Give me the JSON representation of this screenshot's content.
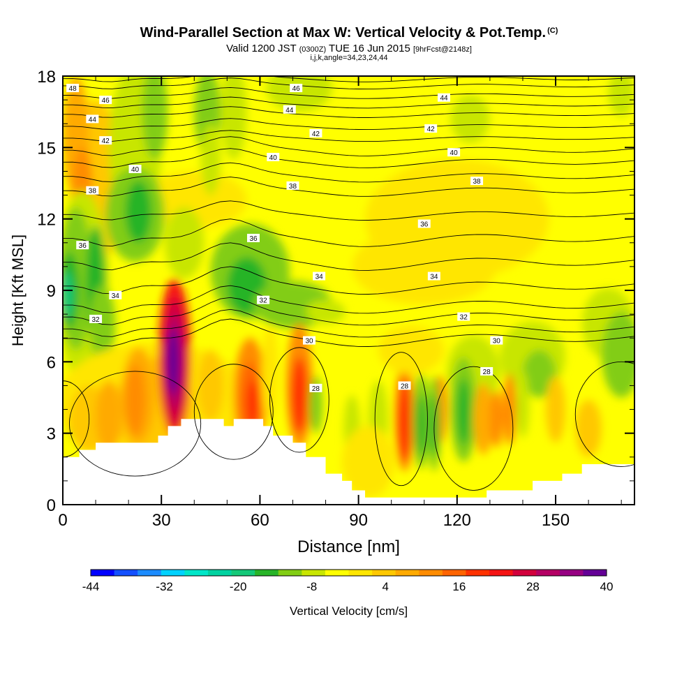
{
  "title": {
    "main": "Wind-Parallel Section at Max W: Vertical Velocity & Pot.Temp.",
    "main_suffix": "(C)",
    "valid_prefix": "Valid 1200 JST",
    "valid_zulu": "(0300Z)",
    "valid_date": "TUE 16 Jun 2015",
    "forecast_info": "[9hrFcst@2148z]",
    "indices": "i,j,k,angle=34,23,24,44"
  },
  "chart_data": {
    "type": "heatmap",
    "xlabel": "Distance [nm]",
    "ylabel": "Height [Kft MSL]",
    "xlim": [
      0,
      174
    ],
    "ylim": [
      0,
      18
    ],
    "xticks": [
      0,
      30,
      60,
      90,
      120,
      150
    ],
    "yticks": [
      0,
      3,
      6,
      9,
      12,
      15,
      18
    ],
    "colorbar": {
      "label": "Vertical Velocity [cm/s]",
      "tick_labels": [
        -44,
        -32,
        -20,
        -8,
        4,
        16,
        28,
        40
      ],
      "min": -44,
      "max": 40,
      "colors": [
        "#0000ff",
        "#1450ff",
        "#1c8cff",
        "#00d2ff",
        "#00e6c8",
        "#00d2a0",
        "#14c878",
        "#28b428",
        "#82cd14",
        "#c8e600",
        "#ffff00",
        "#ffe600",
        "#ffc800",
        "#ffaa00",
        "#ff8c00",
        "#ff6400",
        "#ff3200",
        "#f51414",
        "#d2003c",
        "#b40064",
        "#960082",
        "#640096"
      ]
    },
    "terrain_profile": [
      [
        0,
        2
      ],
      [
        5,
        2
      ],
      [
        5,
        2.3
      ],
      [
        10,
        2.3
      ],
      [
        10,
        2.6
      ],
      [
        29,
        2.6
      ],
      [
        29,
        2.9
      ],
      [
        32,
        2.9
      ],
      [
        32,
        3.3
      ],
      [
        36,
        3.3
      ],
      [
        36,
        3.6
      ],
      [
        49,
        3.6
      ],
      [
        49,
        3.3
      ],
      [
        52,
        3.3
      ],
      [
        52,
        3.6
      ],
      [
        61,
        3.6
      ],
      [
        61,
        3.3
      ],
      [
        64,
        3.3
      ],
      [
        64,
        2.9
      ],
      [
        70,
        2.9
      ],
      [
        70,
        2.6
      ],
      [
        74,
        2.6
      ],
      [
        74,
        2
      ],
      [
        80,
        2
      ],
      [
        80,
        1.3
      ],
      [
        85,
        1.3
      ],
      [
        85,
        1
      ],
      [
        88,
        1
      ],
      [
        88,
        0.6
      ],
      [
        92,
        0.6
      ],
      [
        92,
        0.3
      ],
      [
        129,
        0.3
      ],
      [
        129,
        0.6
      ],
      [
        143,
        0.6
      ],
      [
        143,
        1
      ],
      [
        152,
        1
      ],
      [
        152,
        1.3
      ],
      [
        158,
        1.3
      ],
      [
        158,
        1.7
      ],
      [
        174,
        1.7
      ]
    ],
    "theta_contours": [
      {
        "value": 28,
        "label_positions": [
          [
            77,
            4.9
          ],
          [
            104,
            5
          ],
          [
            129,
            5.6
          ]
        ]
      },
      {
        "value": 30,
        "label_positions": [
          [
            75,
            6.9
          ],
          [
            132,
            6.9
          ]
        ]
      },
      {
        "value": 32,
        "label_positions": [
          [
            10,
            7.8
          ],
          [
            61,
            8.6
          ],
          [
            122,
            7.9
          ]
        ]
      },
      {
        "value": 34,
        "label_positions": [
          [
            16,
            8.8
          ],
          [
            78,
            9.6
          ],
          [
            113,
            9.6
          ]
        ]
      },
      {
        "value": 36,
        "label_positions": [
          [
            6,
            10.9
          ],
          [
            58,
            11.2
          ],
          [
            110,
            11.8
          ]
        ]
      },
      {
        "value": 38,
        "label_positions": [
          [
            9,
            13.2
          ],
          [
            70,
            13.4
          ],
          [
            126,
            13.6
          ]
        ]
      },
      {
        "value": 40,
        "label_positions": [
          [
            22,
            14.1
          ],
          [
            64,
            14.6
          ],
          [
            119,
            14.8
          ]
        ]
      },
      {
        "value": 42,
        "label_positions": [
          [
            13,
            15.3
          ],
          [
            77,
            15.6
          ],
          [
            112,
            15.8
          ]
        ]
      },
      {
        "value": 44,
        "label_positions": [
          [
            9,
            16.2
          ],
          [
            69,
            16.6
          ],
          [
            116,
            17.1
          ]
        ]
      },
      {
        "value": 46,
        "label_positions": [
          [
            13,
            17.0
          ],
          [
            71,
            17.5
          ]
        ]
      },
      {
        "value": 48,
        "label_positions": [
          [
            3,
            17.5
          ]
        ]
      }
    ]
  }
}
